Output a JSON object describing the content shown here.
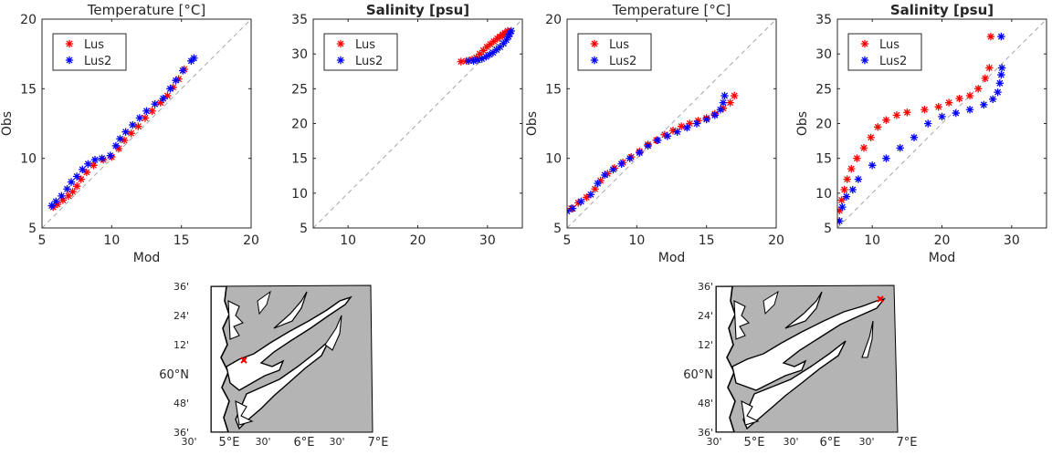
{
  "chart_data": [
    {
      "type": "scatter",
      "title": "Temperature [°C]",
      "title_bold": false,
      "xlabel": "Mod",
      "ylabel": "Obs",
      "xlim": [
        5,
        20
      ],
      "ylim": [
        5,
        20
      ],
      "xticks": [
        5,
        10,
        15,
        20
      ],
      "yticks": [
        5,
        10,
        15,
        20
      ],
      "grid": false,
      "reference_line": "y=x dashed gray",
      "legend": {
        "placement": "top-left",
        "entries": [
          "Lus",
          "Lus2"
        ]
      },
      "series": [
        {
          "name": "Lus",
          "color": "#ff0000",
          "marker": "*",
          "points": [
            [
              5.8,
              6.5
            ],
            [
              6.1,
              6.7
            ],
            [
              6.5,
              7.0
            ],
            [
              6.9,
              7.3
            ],
            [
              7.2,
              7.6
            ],
            [
              7.5,
              8.0
            ],
            [
              7.8,
              8.5
            ],
            [
              8.2,
              9.0
            ],
            [
              8.7,
              9.5
            ],
            [
              9.4,
              9.9
            ],
            [
              10.0,
              10.1
            ],
            [
              10.5,
              10.7
            ],
            [
              10.9,
              11.3
            ],
            [
              11.4,
              11.8
            ],
            [
              11.9,
              12.3
            ],
            [
              12.4,
              12.9
            ],
            [
              12.9,
              13.4
            ],
            [
              13.5,
              14.0
            ],
            [
              14.0,
              14.5
            ],
            [
              14.4,
              15.1
            ],
            [
              14.8,
              15.7
            ],
            [
              15.2,
              16.4
            ]
          ]
        },
        {
          "name": "Lus2",
          "color": "#0000ff",
          "marker": "*",
          "points": [
            [
              5.7,
              6.6
            ],
            [
              6.0,
              6.9
            ],
            [
              6.4,
              7.3
            ],
            [
              6.8,
              7.8
            ],
            [
              7.1,
              8.3
            ],
            [
              7.5,
              8.7
            ],
            [
              7.9,
              9.2
            ],
            [
              8.3,
              9.6
            ],
            [
              8.8,
              9.9
            ],
            [
              9.3,
              10.0
            ],
            [
              9.9,
              10.2
            ],
            [
              10.3,
              10.9
            ],
            [
              10.6,
              11.4
            ],
            [
              11.0,
              11.9
            ],
            [
              11.5,
              12.4
            ],
            [
              12.0,
              12.9
            ],
            [
              12.5,
              13.4
            ],
            [
              13.1,
              13.9
            ],
            [
              13.7,
              14.3
            ],
            [
              14.2,
              15.0
            ],
            [
              14.6,
              15.6
            ],
            [
              15.1,
              16.3
            ],
            [
              15.7,
              17.0
            ],
            [
              15.9,
              17.2
            ]
          ]
        }
      ]
    },
    {
      "type": "scatter",
      "title": "Salinity [psu]",
      "title_bold": true,
      "xlabel": "",
      "ylabel": "",
      "xlim": [
        5,
        35
      ],
      "ylim": [
        5,
        35
      ],
      "xticks": [
        10,
        20,
        30
      ],
      "yticks": [
        5,
        10,
        15,
        20,
        25,
        30,
        35
      ],
      "grid": false,
      "reference_line": "y=x dashed gray",
      "legend": {
        "placement": "top-left",
        "entries": [
          "Lus",
          "Lus2"
        ]
      },
      "series": [
        {
          "name": "Lus",
          "color": "#ff0000",
          "marker": "*",
          "points": [
            [
              26.2,
              28.9
            ],
            [
              27.0,
              29.0
            ],
            [
              27.8,
              29.2
            ],
            [
              28.4,
              29.5
            ],
            [
              28.9,
              30.0
            ],
            [
              29.4,
              30.5
            ],
            [
              29.9,
              31.0
            ],
            [
              30.4,
              31.4
            ],
            [
              30.9,
              31.8
            ],
            [
              31.4,
              32.2
            ],
            [
              31.8,
              32.5
            ],
            [
              32.2,
              32.8
            ],
            [
              32.5,
              33.0
            ],
            [
              32.9,
              33.3
            ]
          ]
        },
        {
          "name": "Lus2",
          "color": "#0000ff",
          "marker": "*",
          "points": [
            [
              27.3,
              29.0
            ],
            [
              28.0,
              29.0
            ],
            [
              28.6,
              29.1
            ],
            [
              29.2,
              29.3
            ],
            [
              29.8,
              29.6
            ],
            [
              30.3,
              29.9
            ],
            [
              30.8,
              30.2
            ],
            [
              31.3,
              30.6
            ],
            [
              31.8,
              31.0
            ],
            [
              32.3,
              31.5
            ],
            [
              32.7,
              32.0
            ],
            [
              33.0,
              32.5
            ],
            [
              33.2,
              32.9
            ],
            [
              33.4,
              33.3
            ]
          ]
        }
      ]
    },
    {
      "type": "scatter",
      "title": "Temperature [°C]",
      "title_bold": false,
      "xlabel": "Mod",
      "ylabel": "Obs",
      "xlim": [
        5,
        20
      ],
      "ylim": [
        5,
        20
      ],
      "xticks": [
        5,
        10,
        15,
        20
      ],
      "yticks": [
        5,
        10,
        15,
        20
      ],
      "grid": false,
      "reference_line": "y=x dashed gray",
      "legend": {
        "placement": "top-left",
        "entries": [
          "Lus",
          "Lus2"
        ]
      },
      "series": [
        {
          "name": "Lus",
          "color": "#ff0000",
          "marker": "*",
          "points": [
            [
              5.3,
              6.4
            ],
            [
              5.8,
              6.8
            ],
            [
              6.4,
              7.2
            ],
            [
              7.0,
              7.8
            ],
            [
              7.4,
              8.4
            ],
            [
              7.9,
              8.9
            ],
            [
              8.4,
              9.3
            ],
            [
              9.0,
              9.7
            ],
            [
              9.6,
              10.1
            ],
            [
              10.2,
              10.5
            ],
            [
              10.8,
              11.0
            ],
            [
              11.4,
              11.3
            ],
            [
              12.0,
              11.7
            ],
            [
              12.6,
              12.0
            ],
            [
              13.2,
              12.3
            ],
            [
              13.8,
              12.5
            ],
            [
              14.4,
              12.7
            ],
            [
              15.0,
              12.9
            ],
            [
              15.6,
              13.2
            ],
            [
              16.2,
              13.6
            ],
            [
              16.7,
              14.0
            ],
            [
              17.0,
              14.5
            ]
          ]
        },
        {
          "name": "Lus2",
          "color": "#0000ff",
          "marker": "*",
          "points": [
            [
              5.0,
              6.2
            ],
            [
              5.4,
              6.4
            ],
            [
              6.0,
              6.9
            ],
            [
              6.7,
              7.4
            ],
            [
              7.2,
              8.2
            ],
            [
              7.7,
              8.8
            ],
            [
              8.3,
              9.2
            ],
            [
              8.9,
              9.6
            ],
            [
              9.5,
              10.0
            ],
            [
              10.2,
              10.4
            ],
            [
              10.8,
              10.9
            ],
            [
              11.5,
              11.3
            ],
            [
              12.2,
              11.6
            ],
            [
              12.9,
              11.9
            ],
            [
              13.6,
              12.2
            ],
            [
              14.3,
              12.5
            ],
            [
              15.0,
              12.8
            ],
            [
              15.6,
              13.1
            ],
            [
              16.0,
              13.5
            ],
            [
              16.2,
              14.0
            ],
            [
              16.3,
              14.5
            ]
          ]
        }
      ]
    },
    {
      "type": "scatter",
      "title": "Salinity [psu]",
      "title_bold": true,
      "xlabel": "Mod",
      "ylabel": "Obs",
      "xlim": [
        5,
        35
      ],
      "ylim": [
        5,
        35
      ],
      "xticks": [
        10,
        20,
        30
      ],
      "yticks": [
        5,
        10,
        15,
        20,
        25,
        30,
        35
      ],
      "grid": false,
      "reference_line": "y=x dashed gray",
      "legend": {
        "placement": "top-left",
        "entries": [
          "Lus",
          "Lus2"
        ]
      },
      "series": [
        {
          "name": "Lus",
          "color": "#ff0000",
          "marker": "*",
          "points": [
            [
              5.0,
              6.0
            ],
            [
              5.3,
              7.5
            ],
            [
              5.6,
              9.0
            ],
            [
              6.0,
              10.5
            ],
            [
              6.4,
              12.0
            ],
            [
              7.0,
              13.5
            ],
            [
              7.8,
              15.0
            ],
            [
              8.8,
              16.5
            ],
            [
              9.8,
              18.0
            ],
            [
              10.8,
              19.5
            ],
            [
              12.0,
              20.5
            ],
            [
              13.5,
              21.2
            ],
            [
              15.0,
              21.6
            ],
            [
              17.5,
              22.0
            ],
            [
              19.5,
              22.4
            ],
            [
              21.0,
              23.0
            ],
            [
              22.5,
              23.6
            ],
            [
              24.0,
              24.0
            ],
            [
              25.2,
              25.0
            ],
            [
              26.2,
              26.5
            ],
            [
              26.8,
              28.0
            ],
            [
              27.0,
              32.5
            ]
          ]
        },
        {
          "name": "Lus2",
          "color": "#0000ff",
          "marker": "*",
          "points": [
            [
              5.3,
              6.0
            ],
            [
              5.7,
              8.0
            ],
            [
              6.3,
              9.5
            ],
            [
              7.2,
              10.5
            ],
            [
              8.0,
              12.0
            ],
            [
              10.0,
              14.0
            ],
            [
              12.0,
              15.0
            ],
            [
              14.0,
              16.5
            ],
            [
              16.0,
              18.0
            ],
            [
              18.0,
              20.0
            ],
            [
              20.0,
              21.0
            ],
            [
              22.0,
              21.5
            ],
            [
              24.0,
              22.0
            ],
            [
              26.0,
              22.7
            ],
            [
              27.3,
              23.5
            ],
            [
              28.0,
              24.5
            ],
            [
              28.3,
              25.8
            ],
            [
              28.5,
              27.0
            ],
            [
              28.6,
              28.0
            ],
            [
              28.5,
              32.5
            ]
          ]
        }
      ]
    }
  ],
  "maps": [
    {
      "type": "map",
      "lat_labels": [
        "36'",
        "24'",
        "12'",
        "60°N",
        "48'",
        "36'"
      ],
      "lon_labels": [
        "30'",
        "5°E",
        "30'",
        "6°E",
        "30'",
        "7°E"
      ],
      "station_marker": {
        "color": "#ff0000",
        "location": "outer fjord, west coast"
      }
    },
    {
      "type": "map",
      "lat_labels": [
        "36'",
        "24'",
        "12'",
        "60°N",
        "48'",
        "36'"
      ],
      "lon_labels": [
        "30'",
        "5°E",
        "30'",
        "6°E",
        "30'",
        "7°E"
      ],
      "station_marker": {
        "color": "#ff0000",
        "location": "inner fjord, north-east"
      }
    }
  ],
  "colors": {
    "land": "#b4b4b4",
    "water": "#ffffff",
    "axis": "#262626",
    "reference": "#a6a6a6"
  }
}
